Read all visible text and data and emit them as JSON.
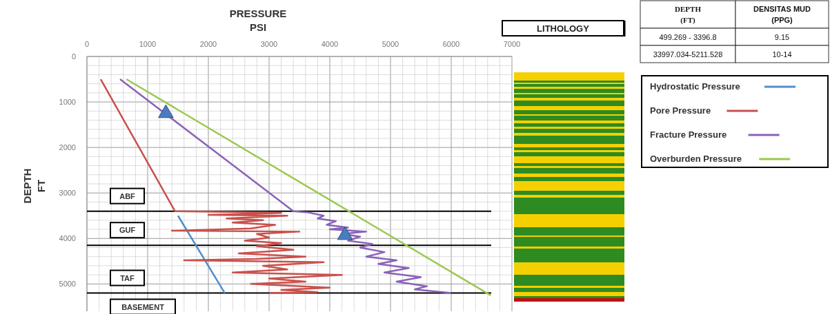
{
  "chart_data": {
    "type": "line",
    "xlabel": "PRESSURE\nPSI",
    "ylabel": "DEPTH\nFT",
    "xlim": [
      0,
      7000
    ],
    "xticks": [
      0,
      1000,
      2000,
      3000,
      4000,
      5000,
      6000,
      7000
    ],
    "ylim": [
      5600,
      0
    ],
    "yticks": [
      0,
      1000,
      2000,
      3000,
      4000,
      5000
    ],
    "grid": true,
    "legend": "right",
    "line_style": "solid",
    "series": [
      {
        "name": "Hydrostatic Pressure",
        "color": "#4f8fcb",
        "x": [
          1500,
          2270
        ],
        "values": [
          3500,
          5200
        ]
      },
      {
        "name": "Pore Pressure",
        "color": "#c9504c",
        "x": [
          227,
          1450,
          2500,
          3200,
          2000,
          3300,
          2300,
          2900,
          2400,
          3100,
          2700,
          1400,
          3500,
          2800,
          3000,
          2600,
          3200,
          2800,
          3400,
          2500,
          3600,
          2800,
          1600,
          3900,
          2900,
          3300,
          2400,
          4200,
          3000,
          3600,
          2700,
          4000,
          3200,
          3800,
          3000
        ],
        "values": [
          500,
          3400,
          3420,
          3440,
          3480,
          3500,
          3560,
          3600,
          3650,
          3700,
          3780,
          3830,
          3850,
          3900,
          3980,
          4050,
          4100,
          4170,
          4250,
          4330,
          4400,
          4450,
          4480,
          4520,
          4600,
          4680,
          4750,
          4800,
          4880,
          4950,
          5000,
          5080,
          5130,
          5180,
          5200
        ]
      },
      {
        "name": "Fracture Pressure",
        "color": "#8a62b8",
        "x": [
          545,
          3400,
          3650,
          3900,
          3800,
          4100,
          3950,
          4300,
          4000,
          4600,
          4200,
          4500,
          4300,
          4700,
          4500,
          4900,
          4600,
          5100,
          4800,
          5300,
          4900,
          5500,
          5100,
          5600,
          5400,
          6000
        ],
        "values": [
          500,
          3400,
          3430,
          3500,
          3560,
          3620,
          3700,
          3760,
          3800,
          3850,
          3900,
          3960,
          4050,
          4120,
          4200,
          4300,
          4400,
          4480,
          4560,
          4650,
          4750,
          4850,
          4950,
          5050,
          5120,
          5200
        ]
      },
      {
        "name": "Overburden Pressure",
        "color": "#9bc84e",
        "x": [
          650,
          6650
        ],
        "values": [
          500,
          5250
        ]
      },
      {
        "type": "scatter",
        "marker": "triangle",
        "color": "#4a7cc0",
        "x": [
          1300,
          4250
        ],
        "values": [
          1250,
          3930
        ]
      }
    ],
    "ref_lines": [
      {
        "axis": "y",
        "value": 3400,
        "color": "#000000"
      },
      {
        "axis": "y",
        "value": 4150,
        "color": "#000000"
      },
      {
        "axis": "y",
        "value": 5200,
        "color": "#000000"
      }
    ],
    "annotations": [
      "LITHOLOGY",
      "DEPTH\n(FT)",
      "DENSITAS MUD\n(PPG)",
      "499.269 - 3396.8",
      "9.15",
      "33997.034-5211.528",
      "10-14",
      "ABF",
      "GUF",
      "TAF",
      "BASEMENT"
    ]
  }
}
